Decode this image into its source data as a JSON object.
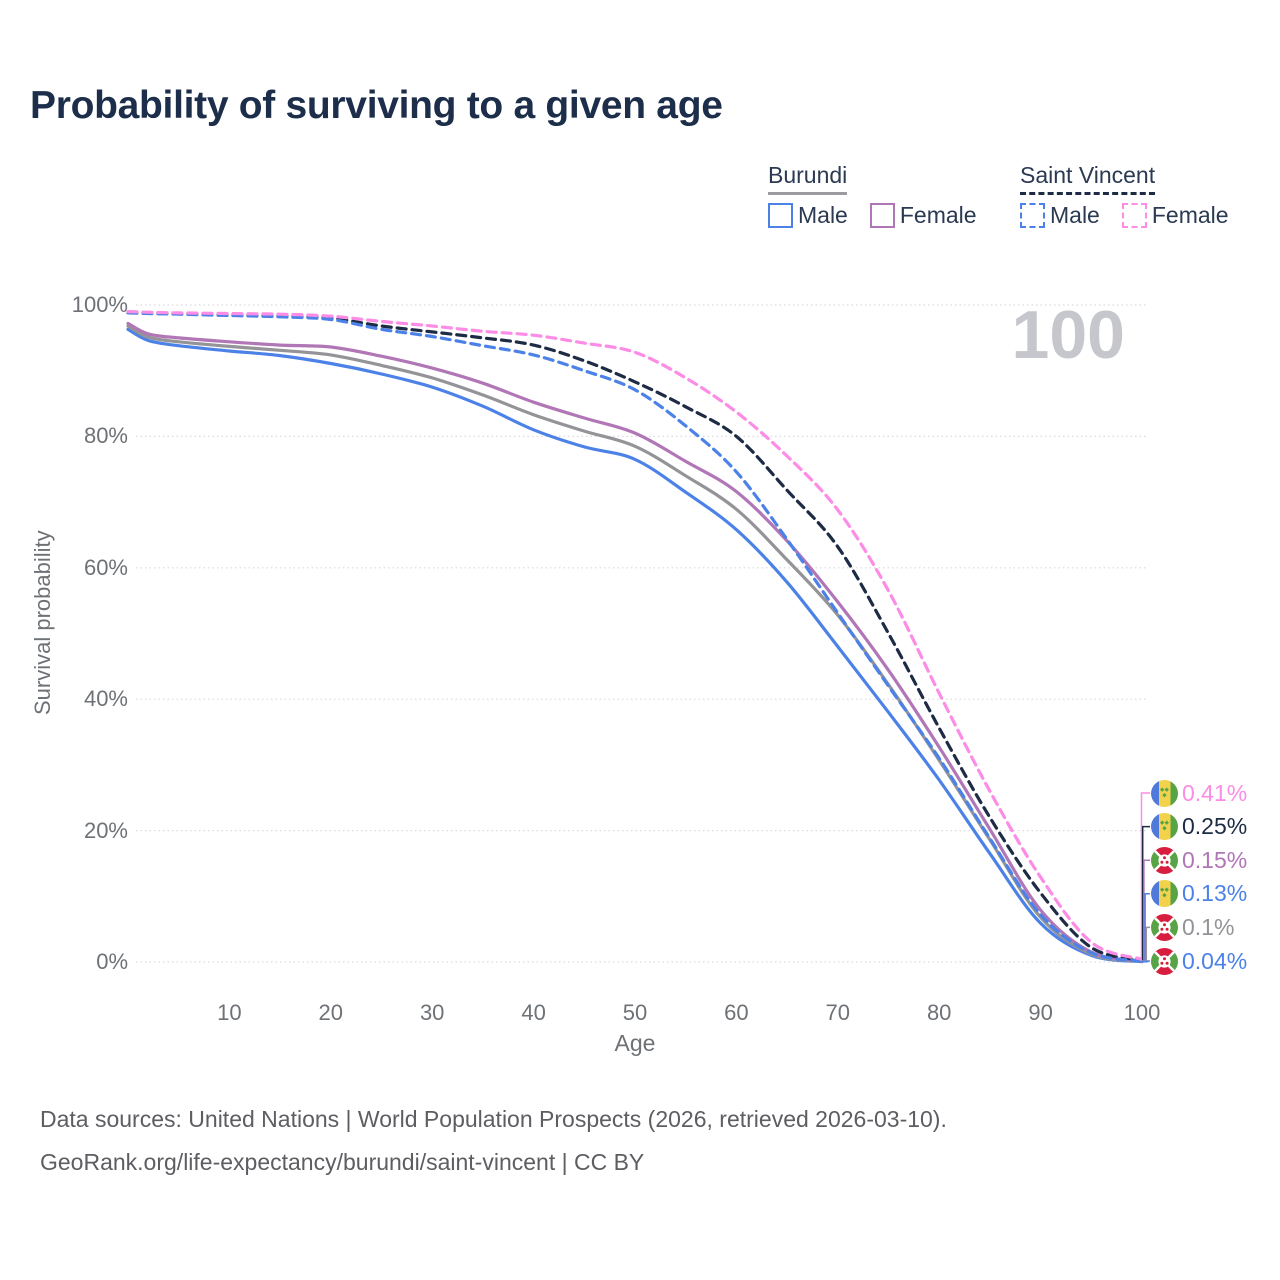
{
  "title": "Probability of surviving to a given age",
  "watermark": "100",
  "legend": {
    "groups": [
      {
        "name": "Burundi",
        "line_style": "solid",
        "underline_color": "#9b9ba0",
        "items": [
          {
            "label": "Male",
            "color": "#4c82e8"
          },
          {
            "label": "Female",
            "color": "#b176b6"
          }
        ]
      },
      {
        "name": "Saint Vincent",
        "line_style": "dashed",
        "underline_color": "#1d2b45",
        "items": [
          {
            "label": "Male",
            "color": "#4c82e8"
          },
          {
            "label": "Female",
            "color": "#fc8ce5"
          }
        ]
      }
    ]
  },
  "axes": {
    "y_label": "Survival probability",
    "x_label": "Age",
    "y_ticks": [
      {
        "label": "100%",
        "value": 100
      },
      {
        "label": "80%",
        "value": 80
      },
      {
        "label": "60%",
        "value": 60
      },
      {
        "label": "40%",
        "value": 40
      },
      {
        "label": "20%",
        "value": 20
      },
      {
        "label": "0%",
        "value": 0
      }
    ],
    "x_ticks": [
      10,
      20,
      30,
      40,
      50,
      60,
      70,
      80,
      90,
      100
    ]
  },
  "chart_data": {
    "type": "line",
    "title": "Probability of surviving to a given age",
    "xlabel": "Age",
    "ylabel": "Survival probability",
    "xlim": [
      0,
      100
    ],
    "ylim": [
      0,
      100
    ],
    "grid": "horizontal-dotted",
    "legend_position": "top-right",
    "x": [
      0,
      2,
      5,
      10,
      15,
      20,
      25,
      30,
      35,
      40,
      45,
      50,
      55,
      60,
      65,
      70,
      75,
      80,
      85,
      90,
      95,
      100
    ],
    "series": [
      {
        "name": "Burundi Male",
        "country": "Burundi",
        "sex": "male",
        "color": "#4c82e8",
        "dash": "solid",
        "values": [
          96.3,
          94.6,
          93.8,
          93.0,
          92.3,
          91.1,
          89.5,
          87.5,
          84.6,
          81.0,
          78.4,
          76.5,
          71.5,
          65.8,
          57.8,
          48.0,
          38.0,
          27.7,
          16.5,
          5.9,
          1.0,
          0.04
        ]
      },
      {
        "name": "Burundi Both sexes",
        "country": "Burundi",
        "sex": "both",
        "color": "#939398",
        "dash": "solid",
        "values": [
          96.8,
          95.1,
          94.4,
          93.7,
          93.1,
          92.4,
          90.8,
          88.9,
          86.3,
          83.3,
          80.8,
          78.5,
          74.0,
          68.9,
          61.2,
          52.8,
          42.2,
          30.7,
          18.6,
          6.8,
          1.2,
          0.1
        ]
      },
      {
        "name": "Burundi Female",
        "country": "Burundi",
        "sex": "female",
        "color": "#b176b6",
        "dash": "solid",
        "values": [
          97.2,
          95.6,
          95.0,
          94.4,
          93.9,
          93.6,
          92.2,
          90.4,
          88.1,
          85.2,
          82.8,
          80.5,
          76.2,
          71.6,
          64.1,
          54.8,
          44.4,
          32.7,
          20.2,
          7.9,
          1.5,
          0.15
        ]
      },
      {
        "name": "Saint Vincent Both sexes",
        "country": "Saint Vincent",
        "sex": "both",
        "color": "#1d2b45",
        "dash": "dashed",
        "values": [
          98.9,
          98.8,
          98.7,
          98.5,
          98.3,
          98.0,
          96.8,
          95.9,
          95.0,
          93.9,
          91.5,
          88.3,
          84.5,
          80.0,
          71.8,
          63.2,
          50.0,
          35.6,
          22.0,
          10.5,
          2.2,
          0.25
        ]
      },
      {
        "name": "Saint Vincent Male",
        "country": "Saint Vincent",
        "sex": "male",
        "color": "#4c82e8",
        "dash": "dashed",
        "values": [
          98.8,
          98.7,
          98.6,
          98.4,
          98.2,
          97.8,
          96.3,
          95.2,
          93.8,
          92.4,
          90.0,
          87.1,
          81.6,
          74.6,
          64.3,
          53.1,
          42.0,
          31.0,
          18.8,
          7.2,
          1.4,
          0.13
        ]
      },
      {
        "name": "Saint Vincent Female",
        "country": "Saint Vincent",
        "sex": "female",
        "color": "#fc8ce5",
        "dash": "dashed",
        "values": [
          99.0,
          98.9,
          98.8,
          98.7,
          98.6,
          98.3,
          97.5,
          96.8,
          96.0,
          95.4,
          94.2,
          92.8,
          88.9,
          83.7,
          77.0,
          68.8,
          56.5,
          40.9,
          26.0,
          12.9,
          3.0,
          0.41
        ]
      }
    ],
    "end_labels": [
      {
        "value": "0.41%",
        "color": "#fc8ce5",
        "flag": "saint-vincent",
        "series": "Saint Vincent Female"
      },
      {
        "value": "0.25%",
        "color": "#1d2b45",
        "flag": "saint-vincent",
        "series": "Saint Vincent Both sexes"
      },
      {
        "value": "0.15%",
        "color": "#b176b6",
        "flag": "burundi",
        "series": "Burundi Female"
      },
      {
        "value": "0.13%",
        "color": "#4c82e8",
        "flag": "saint-vincent",
        "series": "Saint Vincent Male"
      },
      {
        "value": "0.1%",
        "color": "#939398",
        "flag": "burundi",
        "series": "Burundi Both sexes"
      },
      {
        "value": "0.04%",
        "color": "#4c82e8",
        "flag": "burundi",
        "series": "Burundi Male"
      }
    ]
  },
  "footer": {
    "line1": "Data sources: United Nations | World Population Prospects (2026, retrieved 2026-03-10).",
    "line2": "GeoRank.org/life-expectancy/burundi/saint-vincent | CC BY"
  }
}
